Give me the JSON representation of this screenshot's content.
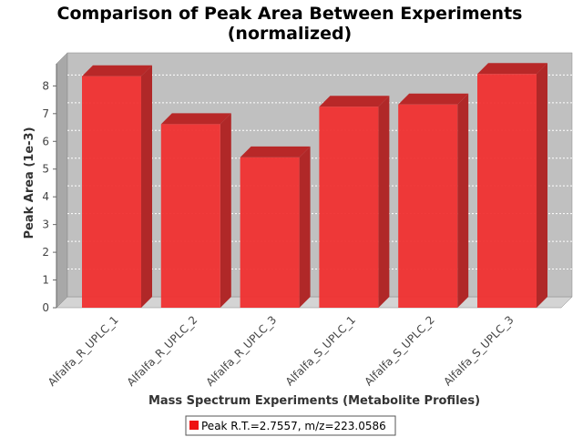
{
  "chart_data": {
    "type": "bar",
    "title": "Comparison of Peak Area Between Experiments",
    "subtitle": "(normalized)",
    "xlabel": "Mass Spectrum Experiments (Metabolite Profiles)",
    "ylabel": "Peak Area (1e-3)",
    "categories": [
      "Alfalfa_R_UPLC_1",
      "Alfalfa_R_UPLC_2",
      "Alfalfa_R_UPLC_3",
      "Alfalfa_S_UPLC_1",
      "Alfalfa_S_UPLC_2",
      "Alfalfa_S_UPLC_3"
    ],
    "series": [
      {
        "name": "Peak R.T.=2.7557, m/z=223.0586",
        "values": [
          8.35,
          6.62,
          5.42,
          7.25,
          7.33,
          8.43
        ]
      }
    ],
    "ylim": [
      0,
      8.8
    ],
    "yticks": [
      0,
      1,
      2,
      3,
      4,
      5,
      6,
      7,
      8
    ],
    "grid": true,
    "legend_position": "bottom",
    "colors": {
      "bar": "#f03030",
      "bar_top": "#b82828",
      "bar_side": "#b02828",
      "plot_bg": "#c0c0c0",
      "gridline": "#ffffff"
    }
  }
}
